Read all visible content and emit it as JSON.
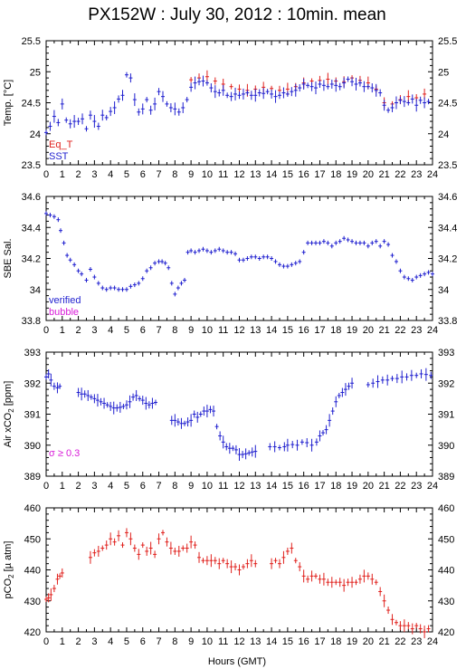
{
  "title": "PX152W : July 30, 2012 : 10min. mean",
  "xlabel": "Hours (GMT)",
  "colors": {
    "red": "#e0201c",
    "blue": "#1f1fcf",
    "magenta": "#d81bd8"
  },
  "chart_data": [
    {
      "type": "scatter",
      "ylabel": "Temp. [°C]",
      "ylim": [
        23.5,
        25.5
      ],
      "yticks": [
        "23.5",
        "24",
        "24.5",
        "25",
        "25.5"
      ],
      "xlim": [
        0,
        24
      ],
      "xticks": [
        "0",
        "1",
        "2",
        "3",
        "4",
        "5",
        "6",
        "7",
        "8",
        "9",
        "10",
        "11",
        "12",
        "13",
        "14",
        "15",
        "16",
        "17",
        "18",
        "19",
        "20",
        "21",
        "22",
        "23",
        "24"
      ],
      "series": [
        {
          "name": "Eq_T",
          "color": "#e0201c",
          "errorbars": true,
          "x": [
            9,
            9.5,
            10,
            10.5,
            11,
            11.5,
            12,
            12.5,
            13,
            13.5,
            14,
            14.5,
            15,
            15.5,
            16,
            16.5,
            17,
            17.5,
            18,
            18.5,
            19,
            19.5,
            20,
            20.5,
            21,
            21.5,
            22,
            22.5,
            23,
            23.5
          ],
          "y": [
            24.87,
            24.9,
            24.92,
            24.85,
            24.8,
            24.76,
            24.72,
            24.7,
            24.72,
            24.75,
            24.73,
            24.7,
            24.72,
            24.76,
            24.82,
            24.85,
            24.86,
            24.88,
            24.85,
            24.84,
            24.9,
            24.86,
            24.82,
            24.72,
            24.5,
            24.48,
            24.55,
            24.6,
            24.58,
            24.64
          ]
        },
        {
          "name": "SST",
          "color": "#1f1fcf",
          "errorbars": true,
          "x": [
            0,
            0.25,
            0.5,
            0.75,
            1,
            1.25,
            1.5,
            1.75,
            2,
            2.25,
            2.5,
            2.75,
            3,
            3.25,
            3.5,
            3.75,
            4,
            4.25,
            4.5,
            4.75,
            5,
            5.25,
            5.5,
            5.75,
            6,
            6.25,
            6.5,
            6.75,
            7,
            7.25,
            7.5,
            7.75,
            8,
            8.25,
            8.5,
            8.75,
            9,
            9.25,
            9.5,
            9.75,
            10,
            10.25,
            10.5,
            10.75,
            11,
            11.25,
            11.5,
            11.75,
            12,
            12.25,
            12.5,
            12.75,
            13,
            13.25,
            13.5,
            13.75,
            14,
            14.25,
            14.5,
            14.75,
            15,
            15.25,
            15.5,
            15.75,
            16,
            16.25,
            16.5,
            16.75,
            17,
            17.25,
            17.5,
            17.75,
            18,
            18.25,
            18.5,
            18.75,
            19,
            19.25,
            19.5,
            19.75,
            20,
            20.25,
            20.5,
            20.75,
            21,
            21.25,
            21.5,
            21.75,
            22,
            22.25,
            22.5,
            22.75,
            23,
            23.25,
            23.5,
            23.75
          ],
          "y": [
            24.02,
            24.12,
            24.28,
            24.18,
            24.48,
            24.22,
            24.16,
            24.2,
            24.2,
            24.24,
            24.08,
            24.3,
            24.2,
            24.12,
            24.3,
            24.26,
            24.36,
            24.42,
            24.56,
            24.62,
            24.95,
            24.9,
            24.55,
            24.35,
            24.4,
            24.55,
            24.38,
            24.48,
            24.68,
            24.6,
            24.48,
            24.42,
            24.4,
            24.35,
            24.42,
            24.55,
            24.75,
            24.82,
            24.84,
            24.85,
            24.82,
            24.74,
            24.68,
            24.66,
            24.7,
            24.62,
            24.6,
            24.64,
            24.62,
            24.64,
            24.66,
            24.62,
            24.62,
            24.66,
            24.65,
            24.68,
            24.64,
            24.6,
            24.62,
            24.66,
            24.64,
            24.68,
            24.7,
            24.74,
            24.8,
            24.78,
            24.76,
            24.74,
            24.8,
            24.78,
            24.76,
            24.8,
            24.78,
            24.76,
            24.82,
            24.88,
            24.84,
            24.8,
            24.82,
            24.76,
            24.76,
            24.74,
            24.7,
            24.66,
            24.46,
            24.38,
            24.42,
            24.5,
            24.54,
            24.52,
            24.5,
            24.56,
            24.46,
            24.54,
            24.5,
            24.52
          ]
        }
      ],
      "legend": [
        {
          "label": "Eq_T",
          "color": "#e0201c"
        },
        {
          "label": "SST",
          "color": "#1f1fcf"
        }
      ],
      "legend_position": "bottom-left"
    },
    {
      "type": "scatter",
      "ylabel": "SBE Sal.",
      "ylim": [
        33.8,
        34.6
      ],
      "yticks": [
        "33.8",
        "34",
        "34.2",
        "34.4",
        "34.6"
      ],
      "xlim": [
        0,
        24
      ],
      "xticks": [
        "0",
        "1",
        "2",
        "3",
        "4",
        "5",
        "6",
        "7",
        "8",
        "9",
        "10",
        "11",
        "12",
        "13",
        "14",
        "15",
        "16",
        "17",
        "18",
        "19",
        "20",
        "21",
        "22",
        "23",
        "24"
      ],
      "series": [
        {
          "name": "verified",
          "color": "#1f1fcf",
          "errorbars": false,
          "x": [
            0,
            0.25,
            0.5,
            0.75,
            0.9,
            1.1,
            1.3,
            1.5,
            1.75,
            2,
            2.2,
            2.5,
            2.75,
            3,
            3.25,
            3.5,
            3.75,
            4,
            4.25,
            4.5,
            4.75,
            5,
            5.25,
            5.5,
            5.75,
            6,
            6.25,
            6.5,
            6.75,
            7,
            7.2,
            7.4,
            7.6,
            7.8,
            8,
            8.2,
            8.4,
            8.6,
            8.8,
            9,
            9.25,
            9.5,
            9.75,
            10,
            10.25,
            10.5,
            10.75,
            11,
            11.25,
            11.5,
            11.75,
            12,
            12.25,
            12.5,
            12.75,
            13,
            13.25,
            13.5,
            13.75,
            14,
            14.25,
            14.5,
            14.75,
            15,
            15.25,
            15.5,
            15.75,
            16,
            16.25,
            16.5,
            16.75,
            17,
            17.25,
            17.5,
            17.75,
            18,
            18.25,
            18.5,
            18.75,
            19,
            19.25,
            19.5,
            19.75,
            20,
            20.25,
            20.5,
            20.75,
            21,
            21.25,
            21.5,
            21.75,
            22,
            22.25,
            22.5,
            22.75,
            23,
            23.25,
            23.5,
            23.75,
            24
          ],
          "y": [
            34.49,
            34.48,
            34.47,
            34.45,
            34.38,
            34.3,
            34.22,
            34.19,
            34.16,
            34.12,
            34.1,
            34.06,
            34.13,
            34.08,
            34.04,
            34.01,
            34.0,
            34.01,
            34.01,
            34.0,
            34.0,
            34.0,
            34.02,
            34.03,
            34.04,
            34.07,
            34.12,
            34.14,
            34.17,
            34.18,
            34.18,
            34.17,
            34.14,
            34.04,
            33.97,
            34.01,
            34.04,
            34.06,
            34.24,
            34.25,
            34.24,
            34.25,
            34.26,
            34.25,
            34.24,
            34.25,
            34.26,
            34.25,
            34.24,
            34.24,
            34.23,
            34.19,
            34.19,
            34.2,
            34.21,
            34.21,
            34.2,
            34.21,
            34.21,
            34.2,
            34.18,
            34.16,
            34.15,
            34.15,
            34.16,
            34.17,
            34.18,
            34.24,
            34.3,
            34.3,
            34.3,
            34.3,
            34.31,
            34.3,
            34.28,
            34.3,
            34.31,
            34.33,
            34.32,
            34.31,
            34.3,
            34.3,
            34.3,
            34.28,
            34.3,
            34.31,
            34.28,
            34.31,
            34.29,
            34.22,
            34.18,
            34.12,
            34.08,
            34.07,
            34.06,
            34.08,
            34.09,
            34.1,
            34.11,
            34.1
          ]
        },
        {
          "name": "bubble",
          "color": "#d81bd8",
          "errorbars": false,
          "x": [],
          "y": []
        }
      ],
      "legend": [
        {
          "label": "verified",
          "color": "#1f1fcf"
        },
        {
          "label": "bubble",
          "color": "#d81bd8"
        }
      ],
      "legend_position": "bottom-left"
    },
    {
      "type": "scatter",
      "ylabel_main": "Air xCO",
      "ylabel_sub": "2",
      "ylabel_unit": " [ppm]",
      "ylim": [
        389,
        393
      ],
      "yticks": [
        "389",
        "390",
        "391",
        "392",
        "393"
      ],
      "xlim": [
        0,
        24
      ],
      "xticks": [
        "0",
        "1",
        "2",
        "3",
        "4",
        "5",
        "6",
        "7",
        "8",
        "9",
        "10",
        "11",
        "12",
        "13",
        "14",
        "15",
        "16",
        "17",
        "18",
        "19",
        "20",
        "21",
        "22",
        "23",
        "24"
      ],
      "series": [
        {
          "name": "",
          "color": "#1f1fcf",
          "errorbars": true,
          "x": [
            0,
            0.15,
            0.3,
            0.5,
            0.7,
            0.85,
            2,
            2.2,
            2.4,
            2.6,
            2.8,
            3,
            3.2,
            3.4,
            3.6,
            3.8,
            4,
            4.2,
            4.4,
            4.6,
            4.8,
            5,
            5.2,
            5.4,
            5.6,
            5.8,
            6,
            6.2,
            6.4,
            6.6,
            6.8,
            7.8,
            8,
            8.2,
            8.4,
            8.6,
            8.8,
            9,
            9.2,
            9.4,
            9.6,
            9.8,
            10,
            10.2,
            10.4,
            10.6,
            10.8,
            11,
            11.2,
            11.4,
            11.6,
            11.8,
            12,
            12.2,
            12.4,
            12.6,
            12.8,
            13,
            13.9,
            14.2,
            14.5,
            14.8,
            15,
            15.3,
            15.6,
            15.9,
            16.2,
            16.5,
            16.8,
            17,
            17.2,
            17.4,
            17.6,
            17.8,
            18,
            18.2,
            18.4,
            18.6,
            18.8,
            19,
            20,
            20.3,
            20.6,
            20.9,
            21.2,
            21.5,
            21.8,
            22.1,
            22.4,
            22.7,
            23,
            23.3,
            23.6,
            23.9
          ],
          "y": [
            392.2,
            392.3,
            392.1,
            391.9,
            391.85,
            391.9,
            391.7,
            391.65,
            391.65,
            391.6,
            391.55,
            391.5,
            391.45,
            391.4,
            391.35,
            391.3,
            391.25,
            391.2,
            391.2,
            391.22,
            391.25,
            391.3,
            391.4,
            391.55,
            391.6,
            391.5,
            391.45,
            391.35,
            391.3,
            391.35,
            391.38,
            390.8,
            390.8,
            390.75,
            390.7,
            390.7,
            390.75,
            390.8,
            391.0,
            390.9,
            391.0,
            391.1,
            391.1,
            391.15,
            391.1,
            390.6,
            390.3,
            390.1,
            389.95,
            389.9,
            389.9,
            389.85,
            389.7,
            389.7,
            389.72,
            389.75,
            389.78,
            389.8,
            389.95,
            389.95,
            389.92,
            389.95,
            390.0,
            390.02,
            390.0,
            390.1,
            390.08,
            390.0,
            390.1,
            390.3,
            390.4,
            390.5,
            390.8,
            391.1,
            391.4,
            391.6,
            391.7,
            391.8,
            391.9,
            392.0,
            391.95,
            392.0,
            392.05,
            392.1,
            392.1,
            392.15,
            392.15,
            392.2,
            392.2,
            392.25,
            392.25,
            392.3,
            392.28,
            392.25
          ]
        }
      ],
      "annotation": {
        "text": "σ ≥ 0.3",
        "color": "#d81bd8",
        "position": "bottom-left"
      }
    },
    {
      "type": "scatter",
      "ylabel_main": "pCO",
      "ylabel_sub": "2",
      "ylabel_unit": " [µ atm]",
      "ylim": [
        420,
        460
      ],
      "yticks": [
        "420",
        "430",
        "440",
        "450",
        "460"
      ],
      "xlim": [
        0,
        24
      ],
      "xticks": [
        "0",
        "1",
        "2",
        "3",
        "4",
        "5",
        "6",
        "7",
        "8",
        "9",
        "10",
        "11",
        "12",
        "13",
        "14",
        "15",
        "16",
        "17",
        "18",
        "19",
        "20",
        "21",
        "22",
        "23",
        "24"
      ],
      "series": [
        {
          "name": "",
          "color": "#e0201c",
          "errorbars": true,
          "x": [
            0,
            0.15,
            0.3,
            0.5,
            0.7,
            0.85,
            1,
            2.75,
            3,
            3.25,
            3.5,
            3.75,
            4,
            4.25,
            4.5,
            4.75,
            5,
            5.25,
            5.5,
            5.75,
            6,
            6.25,
            6.5,
            6.75,
            7,
            7.25,
            7.5,
            7.75,
            8,
            8.25,
            8.5,
            8.75,
            9,
            9.25,
            9.5,
            9.75,
            10,
            10.25,
            10.5,
            10.75,
            11,
            11.25,
            11.5,
            11.75,
            12,
            12.25,
            12.5,
            12.75,
            13,
            14,
            14.25,
            14.5,
            14.75,
            15,
            15.25,
            15.5,
            15.75,
            16,
            16.25,
            16.5,
            16.75,
            17,
            17.25,
            17.5,
            17.75,
            18,
            18.25,
            18.5,
            18.75,
            19,
            19.25,
            19.5,
            19.75,
            20,
            20.25,
            20.5,
            20.75,
            21,
            21.25,
            21.5,
            21.75,
            22,
            22.25,
            22.5,
            22.75,
            23,
            23.25,
            23.5,
            23.75
          ],
          "y": [
            430.5,
            431.0,
            432.0,
            434.0,
            437.0,
            438.0,
            439.0,
            444.0,
            445.5,
            446.0,
            447.0,
            448.0,
            450.0,
            449.0,
            451.0,
            448.0,
            452.0,
            450.0,
            447.0,
            445.0,
            448.0,
            446.0,
            447.0,
            445.0,
            450.0,
            452.0,
            449.0,
            447.0,
            446.0,
            446.0,
            447.0,
            447.0,
            449.0,
            448.0,
            444.0,
            443.0,
            443.0,
            443.0,
            443.0,
            442.0,
            443.0,
            442.0,
            441.0,
            441.0,
            440.0,
            441.0,
            442.0,
            443.0,
            442.0,
            442.0,
            443.0,
            442.0,
            444.0,
            446.0,
            447.0,
            443.0,
            441.0,
            438.0,
            437.0,
            438.0,
            438.0,
            437.0,
            437.0,
            436.0,
            436.0,
            436.0,
            436.0,
            435.0,
            436.0,
            436.0,
            436.0,
            437.0,
            438.0,
            438.0,
            437.0,
            436.0,
            433.0,
            430.0,
            427.0,
            424.0,
            423.0,
            422.0,
            422.0,
            422.0,
            421.0,
            422.0,
            421.0,
            420.0,
            421.0
          ]
        }
      ]
    }
  ]
}
